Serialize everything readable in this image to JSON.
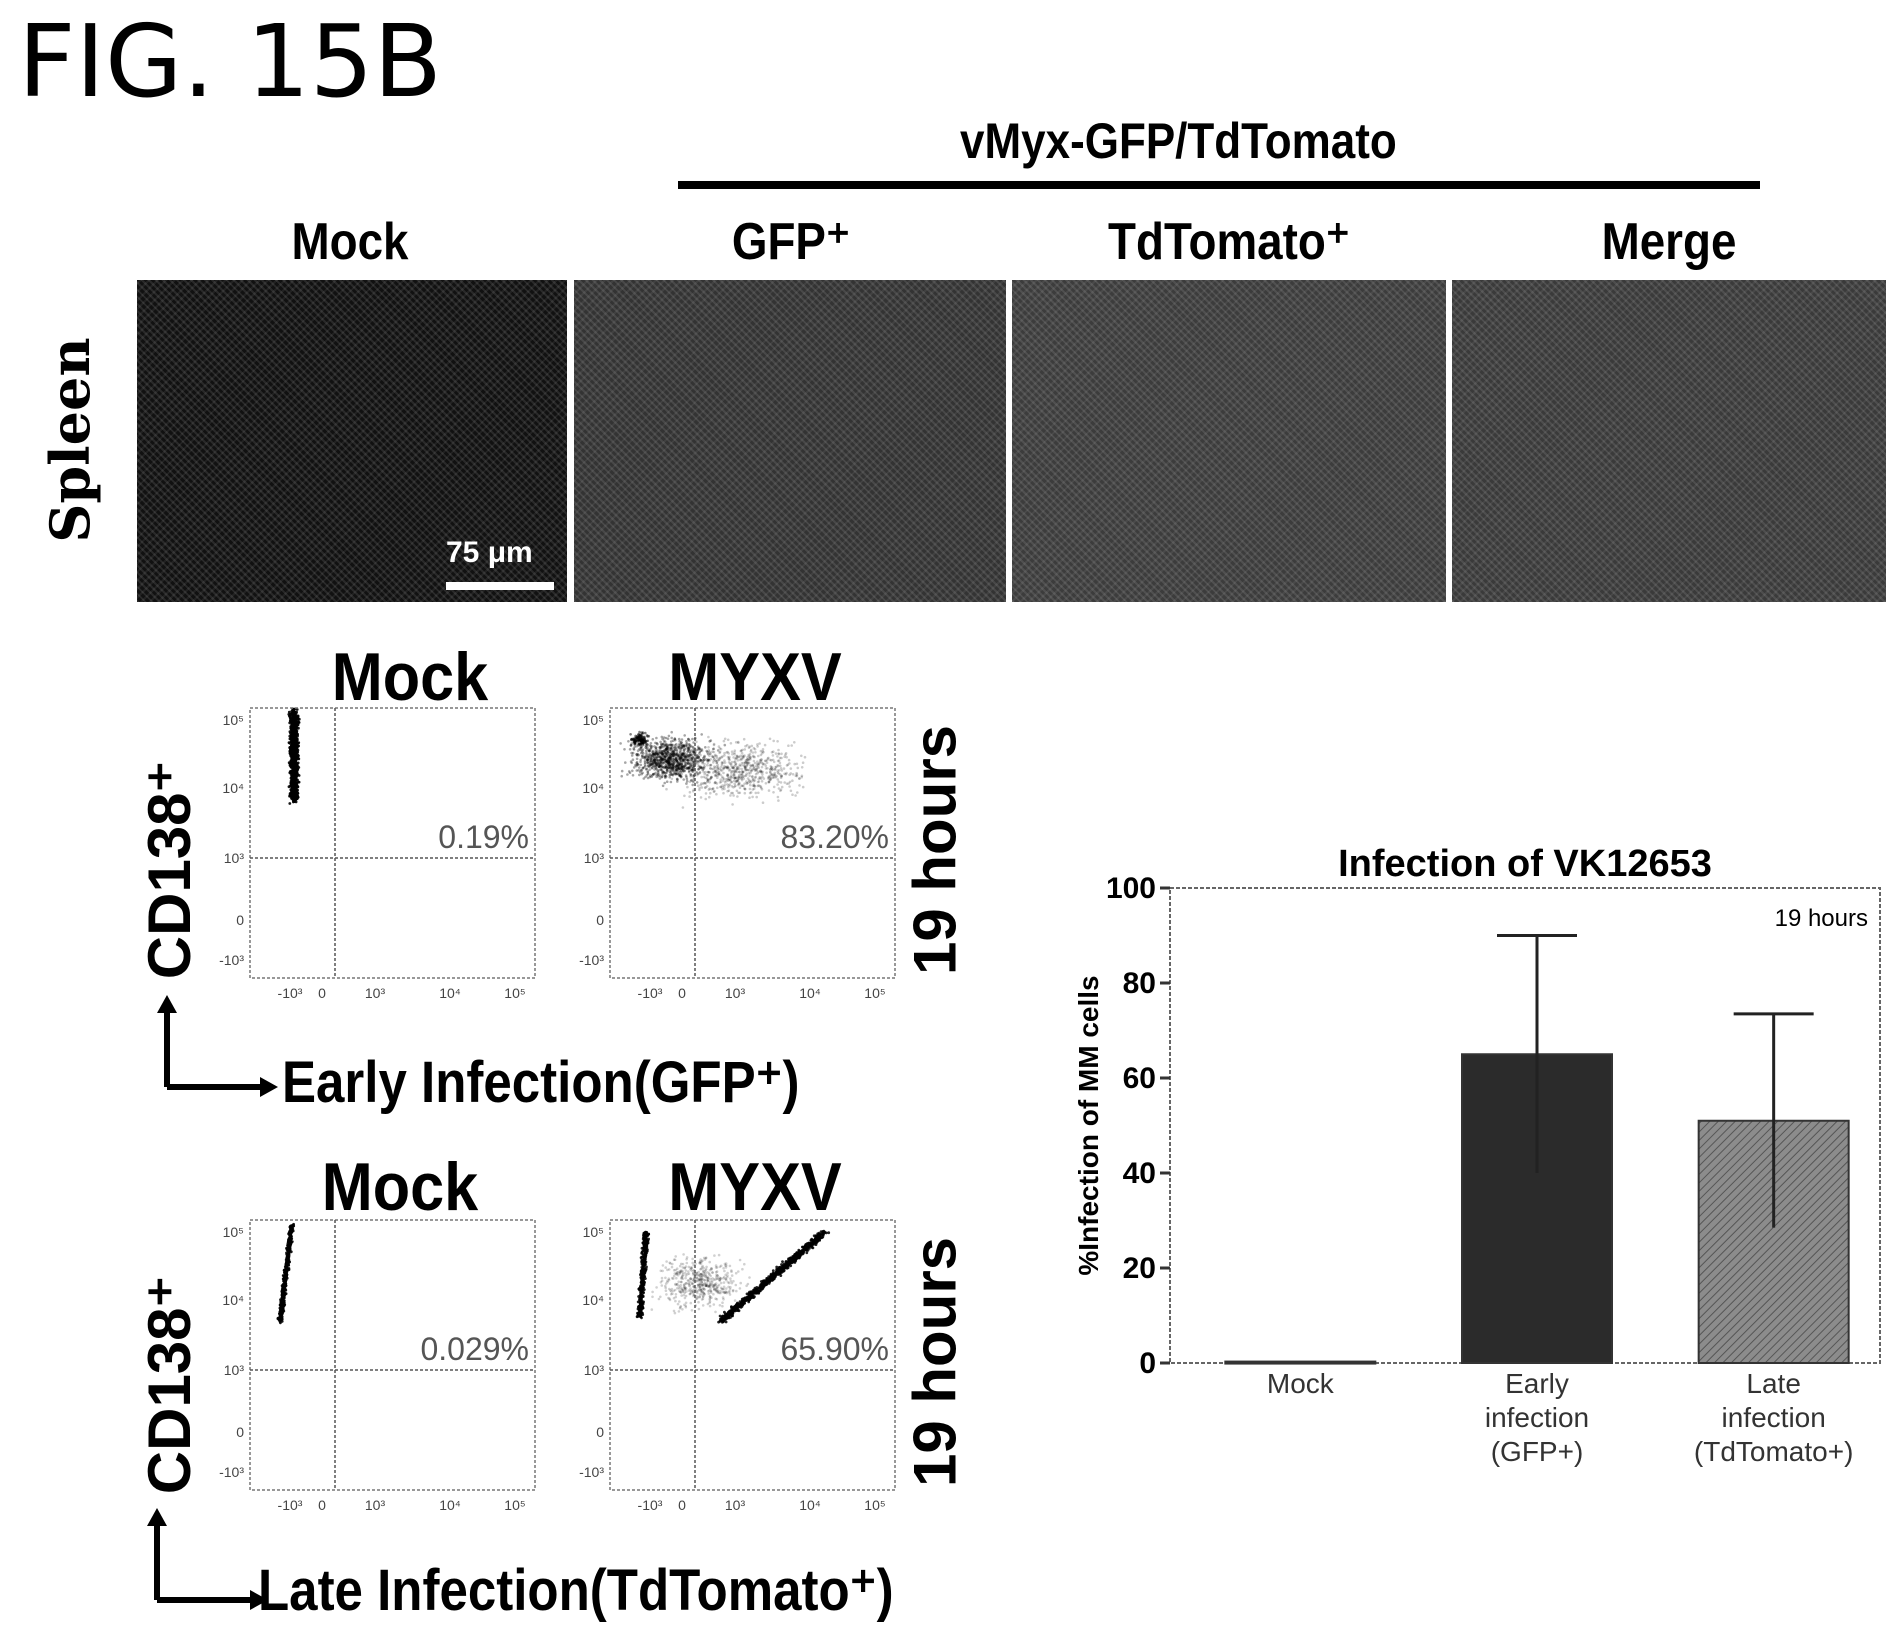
{
  "figure": {
    "title": "FIG. 15B"
  },
  "microscopy": {
    "virus_label": "vMyx-GFP/TdTomato",
    "row_label": "Spleen",
    "scale_bar": "75 μm",
    "columns": [
      "Mock",
      "GFP⁺",
      "TdTomato⁺",
      "Merge"
    ]
  },
  "flow_cytometry": {
    "ylabel": "CD138⁺",
    "time_label": "19 hours",
    "tick_labels_y": [
      "10⁵",
      "10⁴",
      "10³",
      "0",
      "-10³"
    ],
    "tick_labels_x": [
      "-10³",
      "0",
      "10³",
      "10⁴",
      "10⁵"
    ],
    "rows": [
      {
        "xlabel": "Early Infection(GFP⁺)",
        "plots": [
          {
            "title": "Mock",
            "percent": "0.19%"
          },
          {
            "title": "MYXV",
            "percent": "83.20%"
          }
        ]
      },
      {
        "xlabel": "Late Infection(TdTomato⁺)",
        "plots": [
          {
            "title": "Mock",
            "percent": "0.029%"
          },
          {
            "title": "MYXV",
            "percent": "65.90%"
          }
        ]
      }
    ]
  },
  "chart_data": {
    "type": "bar",
    "title": "Infection of VK12653",
    "annotation": "19 hours",
    "ylabel": "%Infection of MM cells",
    "ylim": [
      0,
      100
    ],
    "yticks": [
      0,
      20,
      40,
      60,
      80,
      100
    ],
    "categories": [
      [
        "Mock"
      ],
      [
        "Early",
        "infection",
        "(GFP+)"
      ],
      [
        "Late",
        "infection",
        "(TdTomato+)"
      ]
    ],
    "values": [
      0.3,
      65,
      51
    ],
    "errors": [
      0,
      25,
      22.5
    ],
    "colors": [
      "#ffffff",
      "#2b2b2b",
      "#8c8c8c"
    ],
    "grid": false
  }
}
